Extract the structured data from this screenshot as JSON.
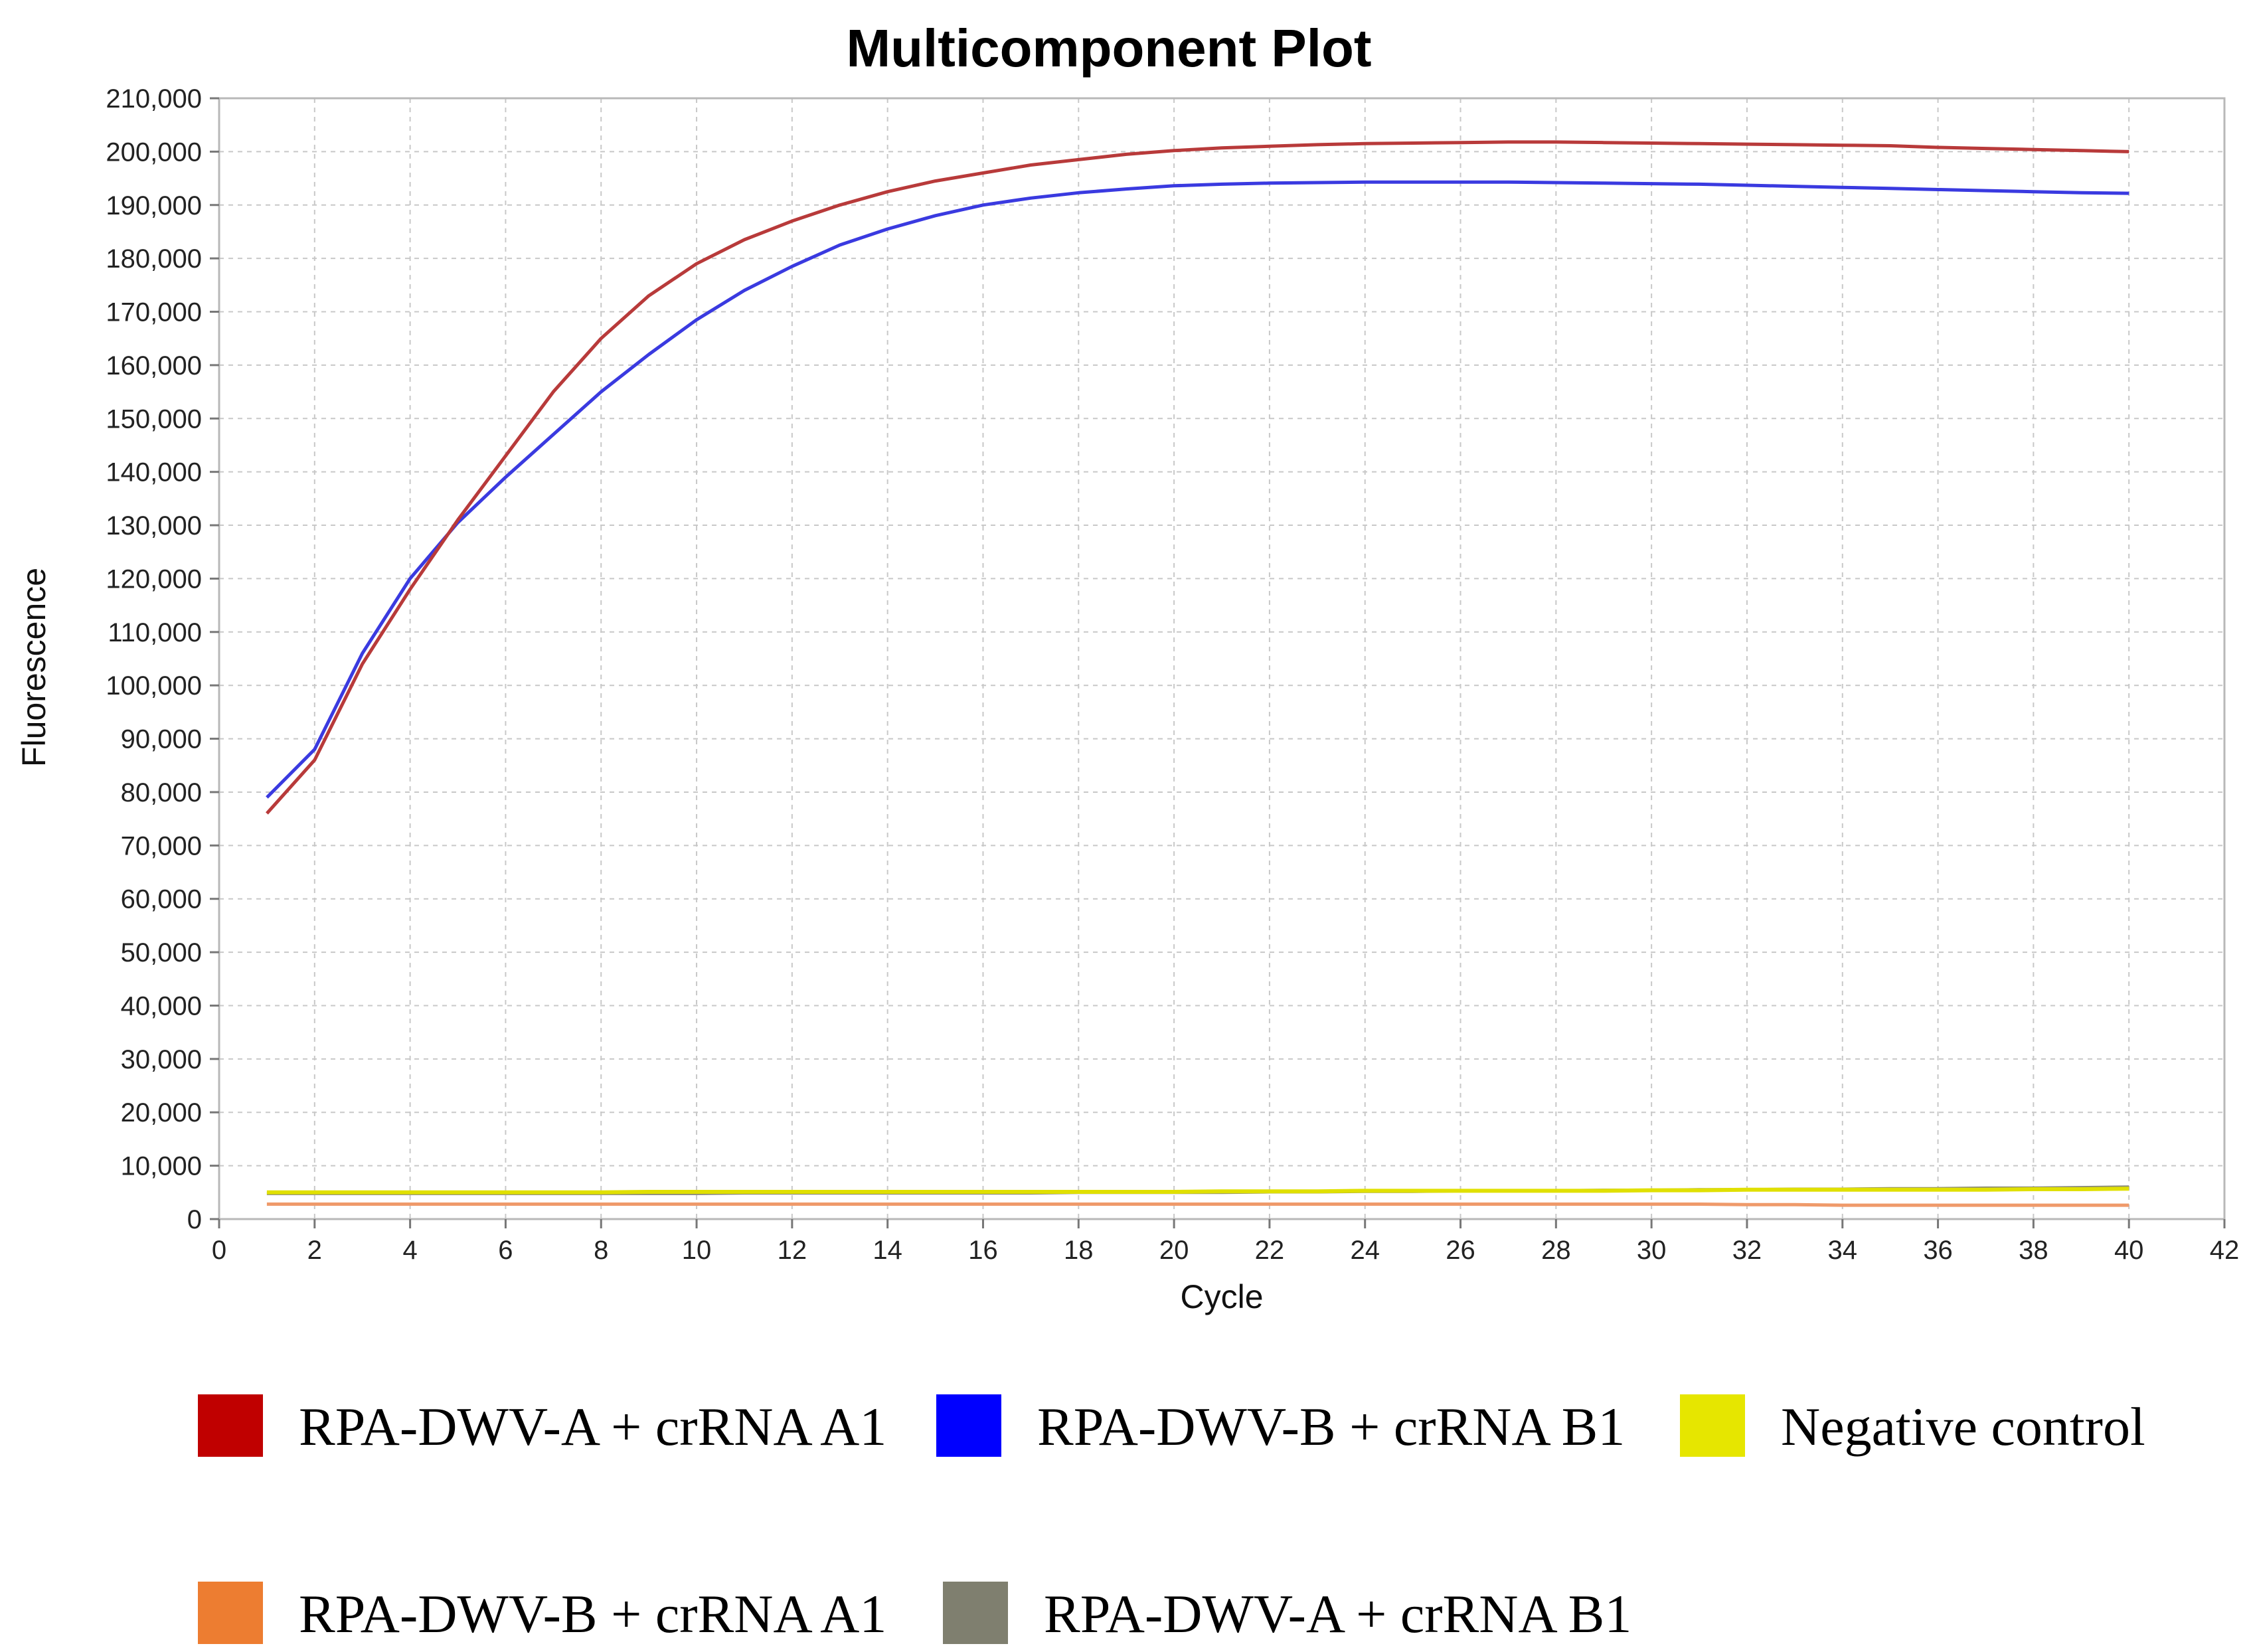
{
  "chart_data": {
    "type": "line",
    "title": "Multicomponent Plot",
    "xlabel": "Cycle",
    "ylabel": "Fluorescence",
    "xlim": [
      0,
      42
    ],
    "ylim": [
      0,
      210000
    ],
    "x_ticks": [
      0,
      2,
      4,
      6,
      8,
      10,
      12,
      14,
      16,
      18,
      20,
      22,
      24,
      26,
      28,
      30,
      32,
      34,
      36,
      38,
      40,
      42
    ],
    "y_ticks": [
      0,
      10000,
      20000,
      30000,
      40000,
      50000,
      60000,
      70000,
      80000,
      90000,
      100000,
      110000,
      120000,
      130000,
      140000,
      150000,
      160000,
      170000,
      180000,
      190000,
      200000,
      210000
    ],
    "y_tick_labels": [
      "0",
      "10,000",
      "20,000",
      "30,000",
      "40,000",
      "50,000",
      "60,000",
      "70,000",
      "80,000",
      "90,000",
      "100,000",
      "110,000",
      "120,000",
      "130,000",
      "140,000",
      "150,000",
      "160,000",
      "170,000",
      "180,000",
      "190,000",
      "200,000",
      "210,000"
    ],
    "grid": true,
    "legend_position": "bottom",
    "x": [
      1,
      2,
      3,
      4,
      5,
      6,
      7,
      8,
      9,
      10,
      11,
      12,
      13,
      14,
      15,
      16,
      17,
      18,
      19,
      20,
      21,
      22,
      23,
      24,
      25,
      26,
      27,
      28,
      29,
      30,
      31,
      32,
      33,
      34,
      35,
      36,
      37,
      38,
      39,
      40
    ],
    "series": [
      {
        "name": "RPA-DWV-A + crRNA A1",
        "color": "#c00000",
        "line_color": "#b83a3a",
        "values": [
          76000,
          86000,
          104000,
          118000,
          131000,
          143000,
          155000,
          165000,
          173000,
          179000,
          183500,
          187000,
          190000,
          192500,
          194500,
          196000,
          197500,
          198500,
          199500,
          200200,
          200700,
          201000,
          201300,
          201500,
          201600,
          201700,
          201800,
          201800,
          201700,
          201600,
          201500,
          201400,
          201300,
          201200,
          201100,
          200800,
          200600,
          200400,
          200200,
          200000
        ]
      },
      {
        "name": "RPA-DWV-B + crRNA B1",
        "color": "#0000ff",
        "line_color": "#3a3ae0",
        "values": [
          79000,
          88000,
          106000,
          120000,
          130500,
          139000,
          147000,
          155000,
          162000,
          168500,
          174000,
          178500,
          182500,
          185500,
          188000,
          190000,
          191300,
          192300,
          193000,
          193600,
          193900,
          194100,
          194200,
          194300,
          194300,
          194300,
          194300,
          194200,
          194100,
          194000,
          193900,
          193700,
          193500,
          193300,
          193100,
          192900,
          192700,
          192500,
          192300,
          192200
        ]
      },
      {
        "name": "Negative control",
        "color": "#e6e600",
        "line_color": "#e0e000",
        "values": [
          5000,
          5000,
          5000,
          5000,
          5000,
          5000,
          5000,
          5000,
          5100,
          5100,
          5100,
          5100,
          5100,
          5100,
          5100,
          5100,
          5100,
          5100,
          5100,
          5100,
          5200,
          5200,
          5200,
          5300,
          5300,
          5300,
          5300,
          5300,
          5300,
          5400,
          5400,
          5500,
          5500,
          5500,
          5500,
          5500,
          5500,
          5600,
          5600,
          5700
        ]
      },
      {
        "name": "RPA-DWV-B + crRNA A1",
        "color": "#ed7d31",
        "line_color": "#ef9a6a",
        "values": [
          2800,
          2800,
          2800,
          2800,
          2800,
          2800,
          2800,
          2800,
          2800,
          2800,
          2800,
          2800,
          2800,
          2800,
          2800,
          2800,
          2800,
          2800,
          2800,
          2800,
          2800,
          2800,
          2800,
          2800,
          2800,
          2800,
          2800,
          2800,
          2800,
          2800,
          2800,
          2700,
          2700,
          2600,
          2600,
          2600,
          2600,
          2600,
          2600,
          2600
        ]
      },
      {
        "name": "RPA-DWV-A + crRNA B1",
        "color": "#7f7f6f",
        "line_color": "#8a8a78",
        "values": [
          4800,
          4800,
          4800,
          4800,
          4800,
          4800,
          4800,
          4800,
          4800,
          4800,
          4900,
          4900,
          4900,
          4900,
          4900,
          4900,
          4900,
          5000,
          5000,
          5000,
          5000,
          5100,
          5100,
          5200,
          5200,
          5300,
          5300,
          5300,
          5400,
          5400,
          5500,
          5500,
          5600,
          5600,
          5700,
          5700,
          5800,
          5800,
          5900,
          6000
        ]
      }
    ]
  }
}
